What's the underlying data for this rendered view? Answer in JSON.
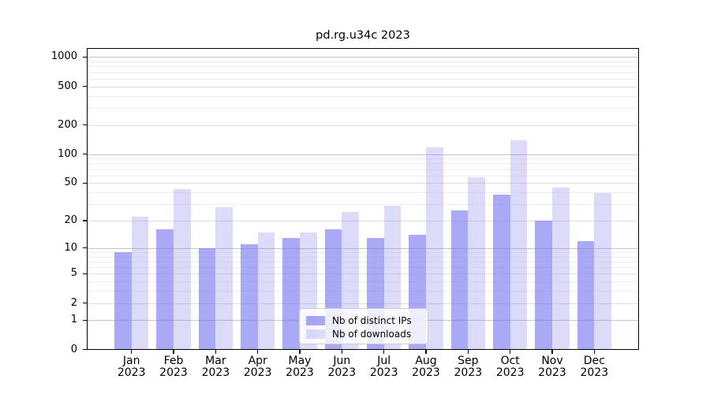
{
  "title": "pd.rg.u34c 2023",
  "chart_data": {
    "type": "bar",
    "categories": [
      "Jan",
      "Feb",
      "Mar",
      "Apr",
      "May",
      "Jun",
      "Jul",
      "Aug",
      "Sep",
      "Oct",
      "Nov",
      "Dec"
    ],
    "category_year": "2023",
    "series": [
      {
        "name": "Nb of distinct IPs",
        "values": [
          9,
          16,
          10,
          11,
          13,
          16,
          13,
          14,
          26,
          38,
          20,
          12
        ],
        "fill": "rgba(116,116,239,0.62)",
        "rendered_color": "#a9a9f2"
      },
      {
        "name": "Nb of downloads",
        "values": [
          22,
          43,
          28,
          15,
          15,
          25,
          29,
          117,
          57,
          139,
          45,
          39
        ],
        "fill": "rgba(138,138,238,0.30)",
        "rendered_color": "#dcdcf9"
      }
    ],
    "xlabel": "",
    "ylabel": "",
    "ytick_labels": [
      0,
      1,
      2,
      5,
      10,
      20,
      50,
      100,
      200,
      500,
      1000
    ],
    "major_gridlines": [
      1,
      10,
      100,
      1000
    ],
    "labeled_minor_gridlines": [
      2,
      5,
      20,
      50,
      200,
      500
    ],
    "minor_gridlines": [
      3,
      4,
      6,
      7,
      8,
      9,
      30,
      40,
      60,
      70,
      80,
      90,
      300,
      400,
      600,
      700,
      800,
      900
    ],
    "ylim": [
      0,
      1225
    ],
    "yscale": "log10(1+y)",
    "grid": "horizontal",
    "legend_position": "lower center"
  },
  "colors": {
    "background": "#ffffff",
    "axis": "#000000",
    "grid_major": "#c3c3c3",
    "grid_labeled_minor": "#dddddd",
    "grid_minor": "#ededed"
  }
}
